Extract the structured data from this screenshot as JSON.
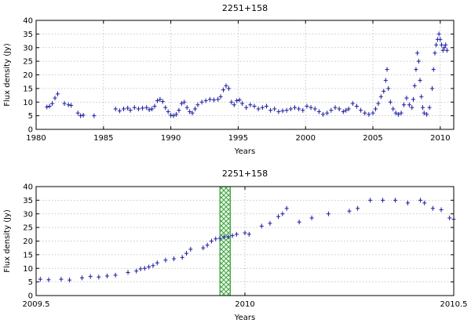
{
  "chart_data": [
    {
      "type": "scatter",
      "title": "2251+158",
      "xlabel": "Years",
      "ylabel": "Flux density (Jy)",
      "xlim": [
        1980,
        2011
      ],
      "ylim": [
        0,
        40
      ],
      "xticks": [
        1980,
        1985,
        1990,
        1995,
        2000,
        2005,
        2010
      ],
      "yticks": [
        0,
        5,
        10,
        15,
        20,
        25,
        30,
        35,
        40
      ],
      "grid": true,
      "marker": "plus",
      "color": "#1a1aa0",
      "x": [
        1980.8,
        1981.0,
        1981.2,
        1981.4,
        1981.6,
        1982.1,
        1982.4,
        1982.6,
        1983.1,
        1983.3,
        1983.5,
        1984.3,
        1985.9,
        1986.2,
        1986.5,
        1986.8,
        1987.0,
        1987.3,
        1987.6,
        1987.9,
        1988.2,
        1988.4,
        1988.6,
        1988.8,
        1989.0,
        1989.2,
        1989.4,
        1989.6,
        1989.8,
        1990.0,
        1990.2,
        1990.4,
        1990.6,
        1990.8,
        1991.0,
        1991.2,
        1991.4,
        1991.6,
        1991.8,
        1992.0,
        1992.3,
        1992.6,
        1992.9,
        1993.2,
        1993.5,
        1993.7,
        1993.9,
        1994.1,
        1994.3,
        1994.5,
        1994.7,
        1994.9,
        1995.1,
        1995.3,
        1995.6,
        1995.9,
        1996.2,
        1996.5,
        1996.8,
        1997.1,
        1997.4,
        1997.7,
        1998.0,
        1998.3,
        1998.6,
        1998.9,
        1999.2,
        1999.5,
        1999.8,
        2000.1,
        2000.4,
        2000.7,
        2001.0,
        2001.3,
        2001.6,
        2001.9,
        2002.2,
        2002.5,
        2002.8,
        2003.0,
        2003.2,
        2003.5,
        2003.8,
        2004.1,
        2004.4,
        2004.7,
        2005.0,
        2005.2,
        2005.4,
        2005.6,
        2005.8,
        2005.95,
        2006.05,
        2006.15,
        2006.3,
        2006.5,
        2006.7,
        2006.9,
        2007.1,
        2007.3,
        2007.5,
        2007.7,
        2007.9,
        2008.0,
        2008.1,
        2008.2,
        2008.3,
        2008.4,
        2008.5,
        2008.6,
        2008.7,
        2008.8,
        2009.0,
        2009.2,
        2009.4,
        2009.5,
        2009.6,
        2009.7,
        2009.8,
        2009.9,
        2010.0,
        2010.1,
        2010.2,
        2010.3,
        2010.4,
        2010.5
      ],
      "y": [
        8.2,
        8.5,
        9.5,
        11.5,
        13.0,
        9.5,
        9.0,
        8.8,
        6.0,
        5.0,
        5.2,
        5.0,
        7.5,
        6.8,
        7.5,
        7.8,
        7.0,
        8.0,
        7.5,
        7.8,
        8.0,
        7.2,
        7.5,
        8.5,
        10.5,
        11.0,
        10.2,
        8.0,
        6.5,
        5.2,
        5.0,
        5.5,
        7.0,
        9.5,
        10.0,
        8.0,
        6.5,
        6.0,
        7.5,
        9.0,
        10.0,
        10.5,
        11.0,
        10.8,
        11.0,
        12.0,
        14.5,
        16.0,
        15.0,
        10.0,
        9.0,
        10.5,
        10.8,
        9.5,
        8.0,
        9.0,
        8.5,
        7.5,
        8.0,
        8.5,
        7.0,
        7.5,
        6.5,
        6.8,
        7.0,
        7.5,
        8.0,
        7.5,
        7.0,
        8.5,
        8.0,
        7.5,
        6.5,
        5.5,
        6.0,
        7.0,
        8.0,
        7.5,
        6.5,
        7.0,
        7.5,
        9.5,
        8.5,
        7.0,
        6.0,
        5.5,
        6.0,
        7.5,
        9.5,
        12.0,
        14.0,
        18.0,
        22.0,
        15.0,
        10.0,
        7.5,
        6.0,
        5.5,
        6.0,
        9.0,
        11.5,
        9.0,
        8.0,
        11.0,
        16.0,
        22.0,
        28.0,
        25.0,
        18.0,
        12.0,
        8.0,
        6.0,
        5.5,
        8.0,
        15.0,
        22.0,
        28.0,
        31.0,
        33.0,
        35.0,
        33.0,
        31.0,
        29.0,
        30.0,
        31.0,
        29.0
      ]
    },
    {
      "type": "scatter",
      "title": "2251+158",
      "xlabel": "Years",
      "ylabel": "Flux density (Jy)",
      "xlim": [
        2009.5,
        2010.5
      ],
      "ylim": [
        0,
        40
      ],
      "xticks": [
        2009.5,
        2010,
        2010.5
      ],
      "xtick_labels": [
        "2009.5",
        "2010",
        "2010.5"
      ],
      "yticks": [
        0,
        5,
        10,
        15,
        20,
        25,
        30,
        35,
        40
      ],
      "grid": true,
      "marker": "plus",
      "color": "#1a1aa0",
      "highlight_band": {
        "x0": 2009.94,
        "x1": 2009.965,
        "color": "#2a9a2a"
      },
      "x": [
        2009.51,
        2009.53,
        2009.56,
        2009.58,
        2009.61,
        2009.63,
        2009.65,
        2009.67,
        2009.69,
        2009.72,
        2009.74,
        2009.75,
        2009.76,
        2009.77,
        2009.78,
        2009.79,
        2009.81,
        2009.83,
        2009.85,
        2009.86,
        2009.87,
        2009.9,
        2009.91,
        2009.92,
        2009.93,
        2009.94,
        2009.95,
        2009.96,
        2009.97,
        2009.98,
        2010.0,
        2010.01,
        2010.04,
        2010.06,
        2010.08,
        2010.09,
        2010.1,
        2010.13,
        2010.16,
        2010.2,
        2010.25,
        2010.27,
        2010.3,
        2010.33,
        2010.36,
        2010.39,
        2010.42,
        2010.43,
        2010.45,
        2010.47,
        2010.49,
        2010.5
      ],
      "y": [
        6.0,
        5.8,
        6.0,
        5.7,
        6.5,
        7.0,
        6.8,
        7.2,
        7.5,
        8.5,
        9.0,
        9.8,
        10.0,
        10.5,
        11.0,
        12.0,
        13.0,
        13.5,
        14.0,
        15.5,
        17.0,
        17.5,
        18.5,
        20.0,
        20.8,
        21.0,
        21.5,
        21.5,
        22.0,
        22.5,
        23.0,
        22.5,
        25.5,
        26.5,
        29.0,
        30.0,
        32.0,
        27.0,
        28.5,
        30.0,
        31.0,
        32.0,
        35.0,
        35.0,
        35.0,
        34.0,
        35.0,
        34.0,
        32.0,
        31.5,
        28.5,
        28.0
      ]
    }
  ]
}
